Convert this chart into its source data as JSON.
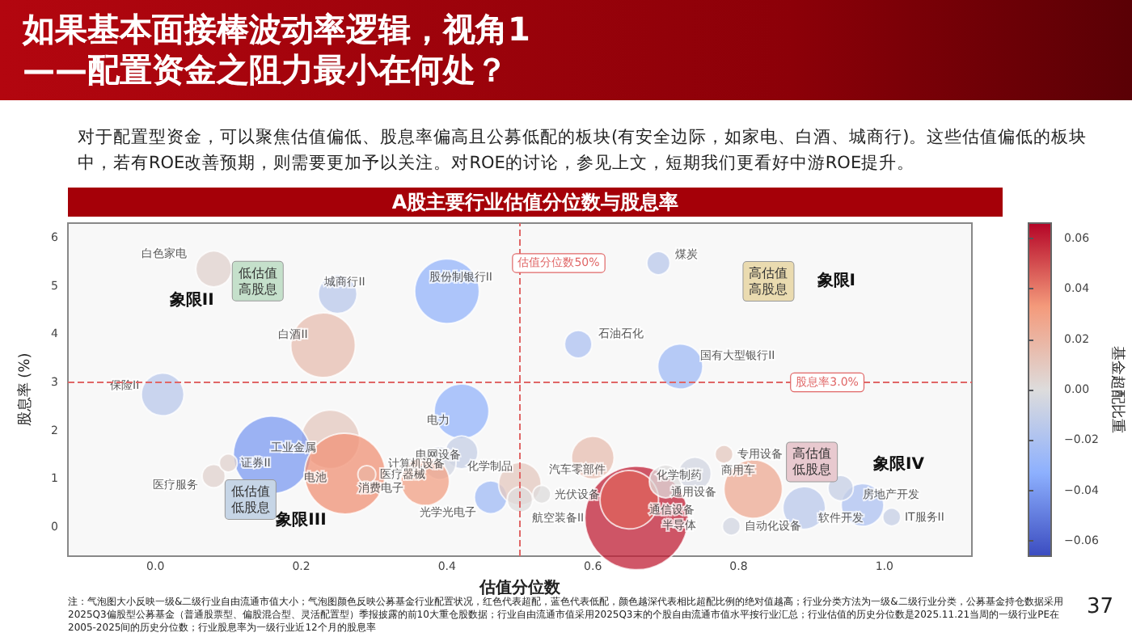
{
  "chart_data": {
    "type": "bubble",
    "title": "如果基本面接棒波动率逻辑，视角1\n——配置资金之阻力最小在何处？",
    "subtitle": "A股主要行业估值分位数与股息率",
    "xlabel": "估值分位数",
    "ylabel": "股息率 (%)",
    "clabel": "基金超配比重",
    "x": [
      0.08,
      0.25,
      0.4,
      0.23,
      0.01,
      0.42,
      0.24,
      0.16,
      0.26,
      0.08,
      0.42,
      0.39,
      0.37,
      0.46,
      0.5,
      0.5,
      0.69,
      0.58,
      0.72,
      0.6,
      0.66,
      0.65,
      0.7,
      0.74,
      0.82,
      0.89,
      0.97,
      0.94,
      0.1,
      0.29,
      0.53,
      0.78,
      0.79,
      1.01
    ],
    "values": [
      5.35,
      4.83,
      4.89,
      3.77,
      2.75,
      2.4,
      1.82,
      1.5,
      1.11,
      1.06,
      1.55,
      1.33,
      0.95,
      0.62,
      0.9,
      0.57,
      5.47,
      3.79,
      3.33,
      1.44,
      0.19,
      0.57,
      0.95,
      1.11,
      0.79,
      0.4,
      0.46,
      0.81,
      1.33,
      1.09,
      0.68,
      1.51,
      0.02,
      0.21
    ],
    "sizes": [
      0.12,
      0.14,
      0.39,
      0.39,
      0.17,
      0.28,
      0.32,
      0.56,
      0.61,
      0.05,
      0.1,
      0.1,
      0.22,
      0.1,
      0.17,
      0.06,
      0.05,
      0.07,
      0.19,
      0.17,
      1,
      0.32,
      0.1,
      0.1,
      0.32,
      0.17,
      0.17,
      0.06,
      0.03,
      0.03,
      0.03,
      0.03,
      0.03,
      0.03
    ],
    "cvalues": [
      0.005,
      -0.015,
      -0.03,
      0.015,
      -0.015,
      -0.03,
      0.01,
      -0.04,
      0.035,
      0.005,
      -0.01,
      -0.005,
      0.03,
      -0.025,
      0.01,
      0,
      -0.015,
      -0.02,
      -0.025,
      0.015,
      0.06,
      0.045,
      0,
      -0.005,
      0.025,
      -0.015,
      -0.02,
      -0.01,
      0.005,
      0.02,
      0,
      0.01,
      -0.005,
      -0.01
    ],
    "value_labels": [
      "白色家电",
      "城商行II",
      "股份制银行II",
      "白酒II",
      "保险II",
      "电力",
      null,
      "工业金属",
      "电池",
      "医疗服务",
      "电网设备",
      "计算机设备",
      "消费电子",
      "光学光电子",
      "化学制品",
      "航空装备II",
      "煤炭",
      "石油石化",
      "国有大型银行II",
      "汽车零部件",
      "半导体",
      "通信设备",
      "化学制药",
      "通用设备",
      "商用车",
      "软件开发",
      "房地产开发",
      null,
      "证券II",
      "医疗器械",
      "光伏设备",
      "专用设备",
      "自动化设备",
      "IT服务II"
    ],
    "xlim": [
      -0.12,
      1.12
    ],
    "ylim": [
      -0.6,
      6.3
    ],
    "xticks": [
      {
        "value": 0,
        "label": "0.0"
      },
      {
        "value": 0.2,
        "label": "0.2"
      },
      {
        "value": 0.4,
        "label": "0.4"
      },
      {
        "value": 0.6,
        "label": "0.6"
      },
      {
        "value": 0.8,
        "label": "0.8"
      },
      {
        "value": 1,
        "label": "1.0"
      }
    ],
    "yticks": [
      0,
      1,
      2,
      3,
      4,
      5,
      6
    ],
    "clim": [
      -0.066,
      0.066
    ],
    "cticks": [
      {
        "value": 0.06,
        "label": "0.06"
      },
      {
        "value": 0.04,
        "label": "0.04"
      },
      {
        "value": 0.02,
        "label": "0.02"
      },
      {
        "value": 0,
        "label": "0.00"
      },
      {
        "value": -0.02,
        "label": "−0.02"
      },
      {
        "value": -0.04,
        "label": "−0.04"
      },
      {
        "value": -0.06,
        "label": "−0.06"
      }
    ],
    "ref_lines": [
      {
        "axis": "x",
        "value": 0.5,
        "label": "估值分位数50%",
        "color": "#e06666",
        "line_style": "dashed"
      },
      {
        "axis": "y",
        "value": 3.0,
        "label": "股息率3.0%",
        "color": "#e06666",
        "line_style": "dashed"
      }
    ],
    "annotations": [
      "对于配置型资金，可以聚焦估值偏低、股息率偏高且公募低配的板块(有安全边际，如家电、白酒、城商行)。这些估值偏低的板块中，若有ROE改善预期，则需要更加予以关注。对ROE的讨论，参见上文，短期我们更看好中游ROE提升。",
      "注：气泡图大小反映一级&二级行业自由流通市值大小；气泡图颜色反映公募基金行业配置状况，红色代表超配，蓝色代表低配，颜色越深代表相比超配比例的绝对值越高；行业分类方法为一级&二级行业分类，公募基金持仓数据采用2025Q3偏股型公募基金（普通股票型、偏股混合型、灵活配置型）季报披露的前10大重仓股数据；行业自由流通市值采用2025Q3末的个股自由流通市值水平按行业汇总；行业估值的历史分位数是2025.11.21当周的一级行业PE在2005-2025间的历史分位数；行业股息率为一级行业近12个月的股息率",
      "37",
      "象限II",
      "低估值高股息",
      "象限I",
      "高估值高股息",
      "象限III",
      "低估值低股息",
      "象限IV",
      "高估值低股息"
    ]
  }
}
